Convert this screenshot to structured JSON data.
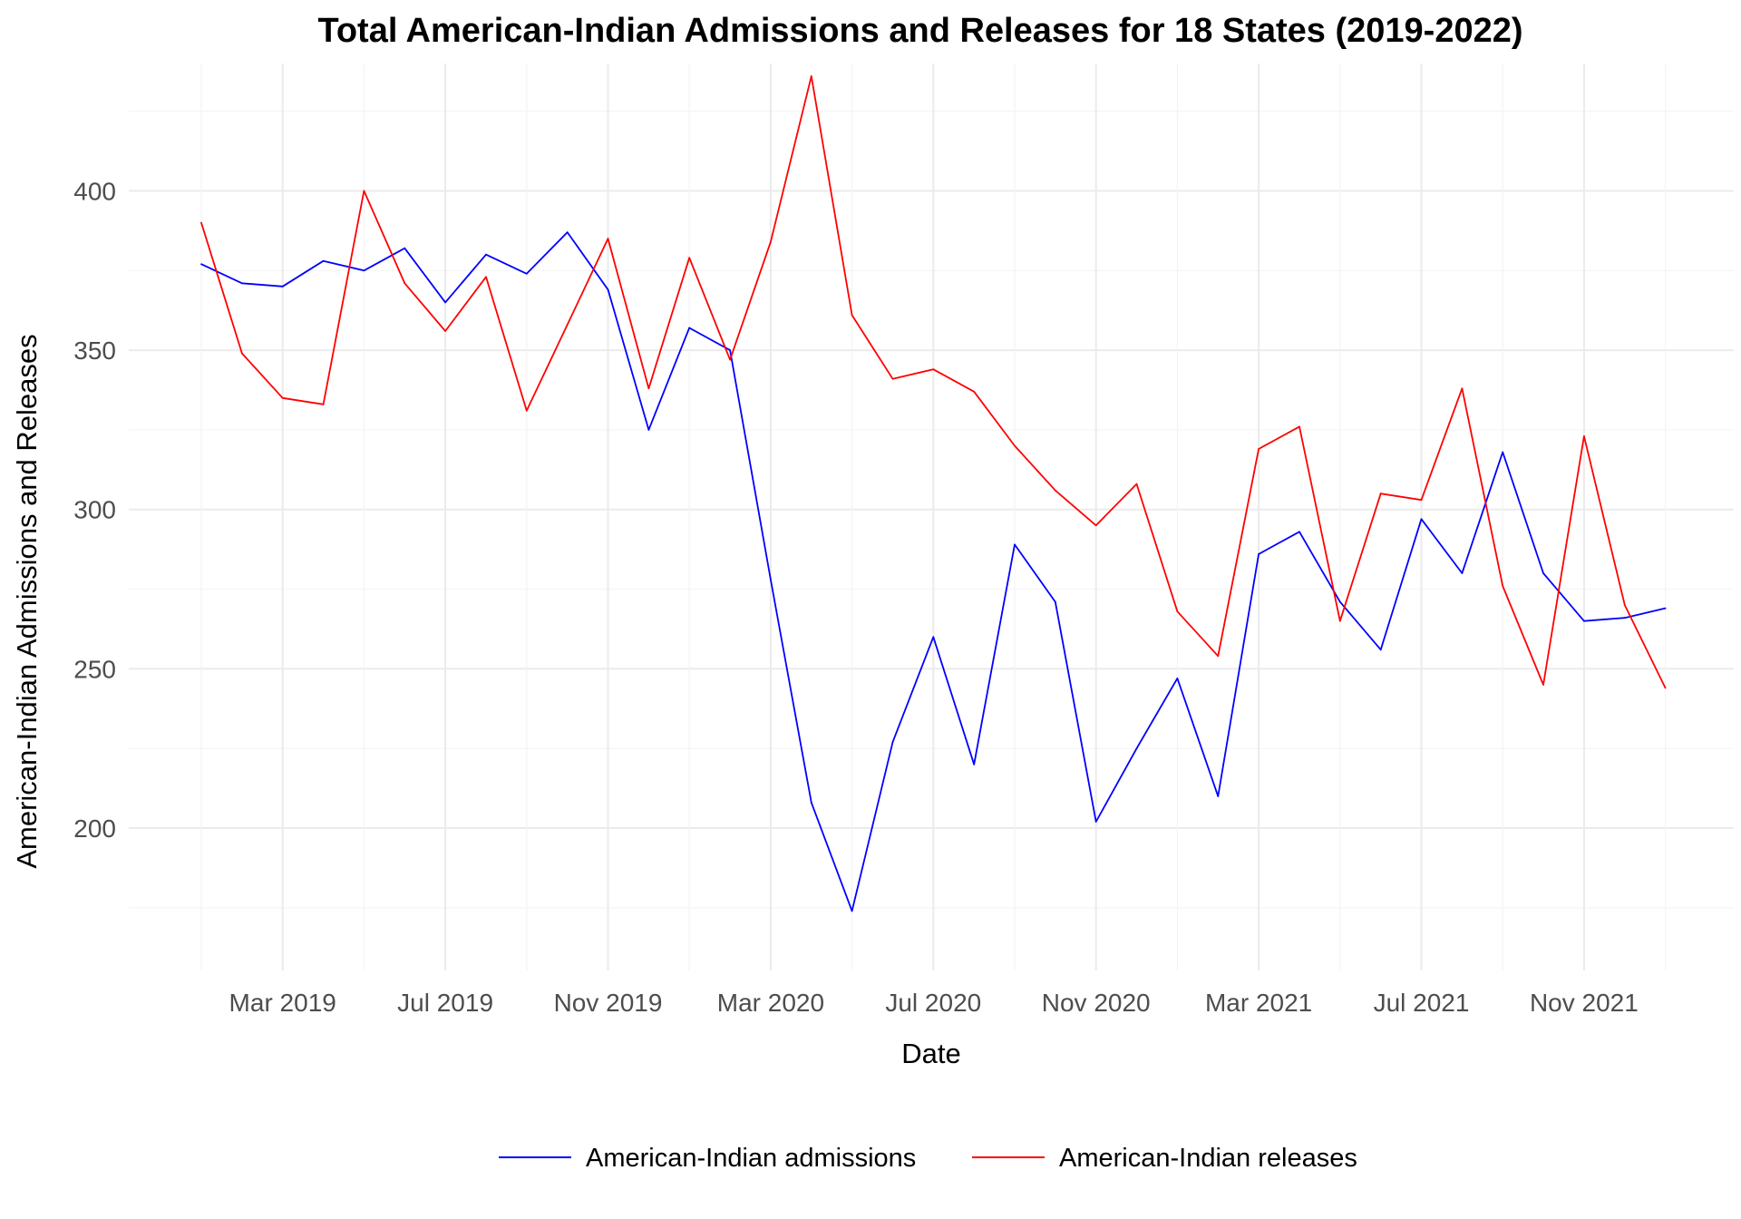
{
  "chart_data": {
    "type": "line",
    "title": "Total American-Indian Admissions and Releases for 18 States (2019-2022)",
    "xlabel": "Date",
    "ylabel": "American-Indian Admissions and Releases",
    "x_tick_labels": [
      "Mar 2019",
      "Jul 2019",
      "Nov 2019",
      "Mar 2020",
      "Jul 2020",
      "Nov 2020",
      "Mar 2021",
      "Jul 2021",
      "Nov 2021"
    ],
    "y_ticks": [
      200,
      250,
      300,
      350,
      400
    ],
    "ylim": [
      165,
      440
    ],
    "grid": true,
    "legend_position": "bottom",
    "x": [
      "2019-01",
      "2019-02",
      "2019-03",
      "2019-04",
      "2019-05",
      "2019-06",
      "2019-07",
      "2019-08",
      "2019-09",
      "2019-10",
      "2019-11",
      "2019-12",
      "2020-01",
      "2020-02",
      "2020-03",
      "2020-04",
      "2020-05",
      "2020-06",
      "2020-07",
      "2020-08",
      "2020-09",
      "2020-10",
      "2020-11",
      "2020-12",
      "2021-01",
      "2021-02",
      "2021-03",
      "2021-04",
      "2021-05",
      "2021-06",
      "2021-07",
      "2021-08",
      "2021-09",
      "2021-10",
      "2021-11",
      "2021-12",
      "2022-01"
    ],
    "series": [
      {
        "name": "American-Indian admissions",
        "color": "#0000ff",
        "values": [
          377,
          371,
          370,
          378,
          375,
          382,
          365,
          380,
          374,
          387,
          369,
          325,
          357,
          350,
          278,
          208,
          174,
          227,
          260,
          220,
          289,
          271,
          202,
          225,
          247,
          210,
          286,
          293,
          271,
          256,
          297,
          280,
          318,
          280,
          265,
          266,
          269
        ]
      },
      {
        "name": "American-Indian releases",
        "color": "#ff0000",
        "values": [
          390,
          349,
          335,
          333,
          400,
          371,
          356,
          373,
          331,
          358,
          385,
          338,
          379,
          347,
          384,
          436,
          361,
          341,
          344,
          337,
          320,
          306,
          295,
          308,
          268,
          254,
          319,
          326,
          265,
          305,
          303,
          338,
          276,
          245,
          323,
          270,
          244
        ]
      }
    ]
  }
}
